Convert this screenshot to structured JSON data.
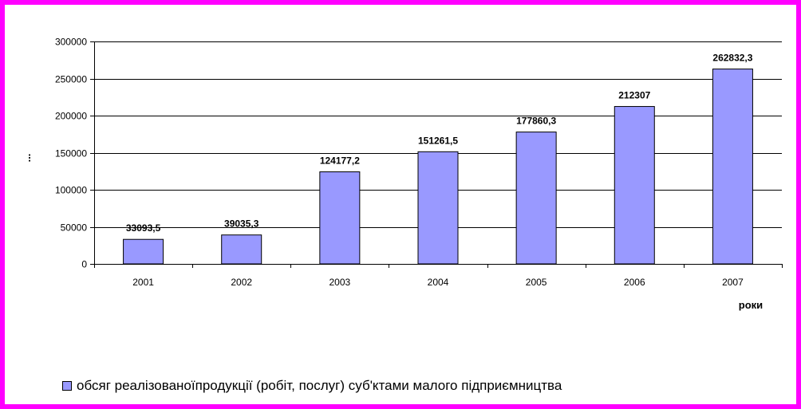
{
  "colors": {
    "border": "#ff00ff",
    "bar_fill": "#9999ff",
    "bar_stroke": "#000000",
    "grid": "#000000"
  },
  "chart_data": {
    "type": "bar",
    "categories": [
      "2001",
      "2002",
      "2003",
      "2004",
      "2005",
      "2006",
      "2007"
    ],
    "series": [
      {
        "name": "обсяг реалізованої продукції (робіт, послуг) суб'ктами малого підприємництва",
        "values": [
          33093.5,
          39035.3,
          124177.2,
          151261.5,
          177860.3,
          212307,
          262832.3
        ]
      }
    ],
    "data_labels": [
      "33093,5",
      "39035,3",
      "124177,2",
      "151261,5",
      "177860,3",
      "212307",
      "262832,3"
    ],
    "y_ticks": [
      "0",
      "50000",
      "100000",
      "150000",
      "200000",
      "250000",
      "300000"
    ],
    "ylim": [
      0,
      300000
    ],
    "xlabel": "роки",
    "ylabel": "...",
    "grid": true,
    "legend_position": "bottom-left"
  },
  "legend": {
    "label": "обсяг реалізованоїпродукції (робіт, послуг) суб'ктами малого підприємництва"
  }
}
